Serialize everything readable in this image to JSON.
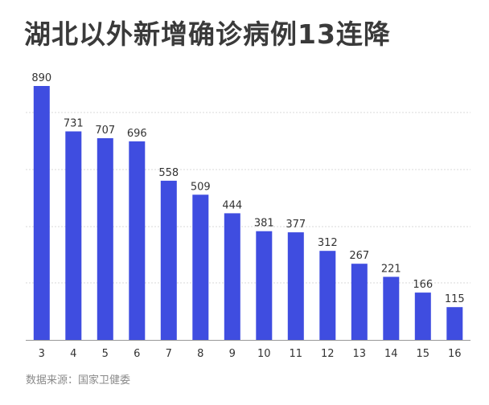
{
  "title": "湖北以外新增确诊病例13连降",
  "source": "数据来源：国家卫健委",
  "colors": {
    "bar": "#3f4de0",
    "grid": "#d9d9d9",
    "axis": "#999999",
    "text": "#333333"
  },
  "chart_data": {
    "type": "bar",
    "title": "湖北以外新增确诊病例13连降",
    "xlabel": "",
    "ylabel": "",
    "categories": [
      "3",
      "4",
      "5",
      "6",
      "7",
      "8",
      "9",
      "10",
      "11",
      "12",
      "13",
      "14",
      "15",
      "16"
    ],
    "values": [
      890,
      731,
      707,
      696,
      558,
      509,
      444,
      381,
      377,
      312,
      267,
      221,
      166,
      115
    ],
    "ylim": [
      0,
      890
    ],
    "grid": true,
    "legend": "none"
  }
}
